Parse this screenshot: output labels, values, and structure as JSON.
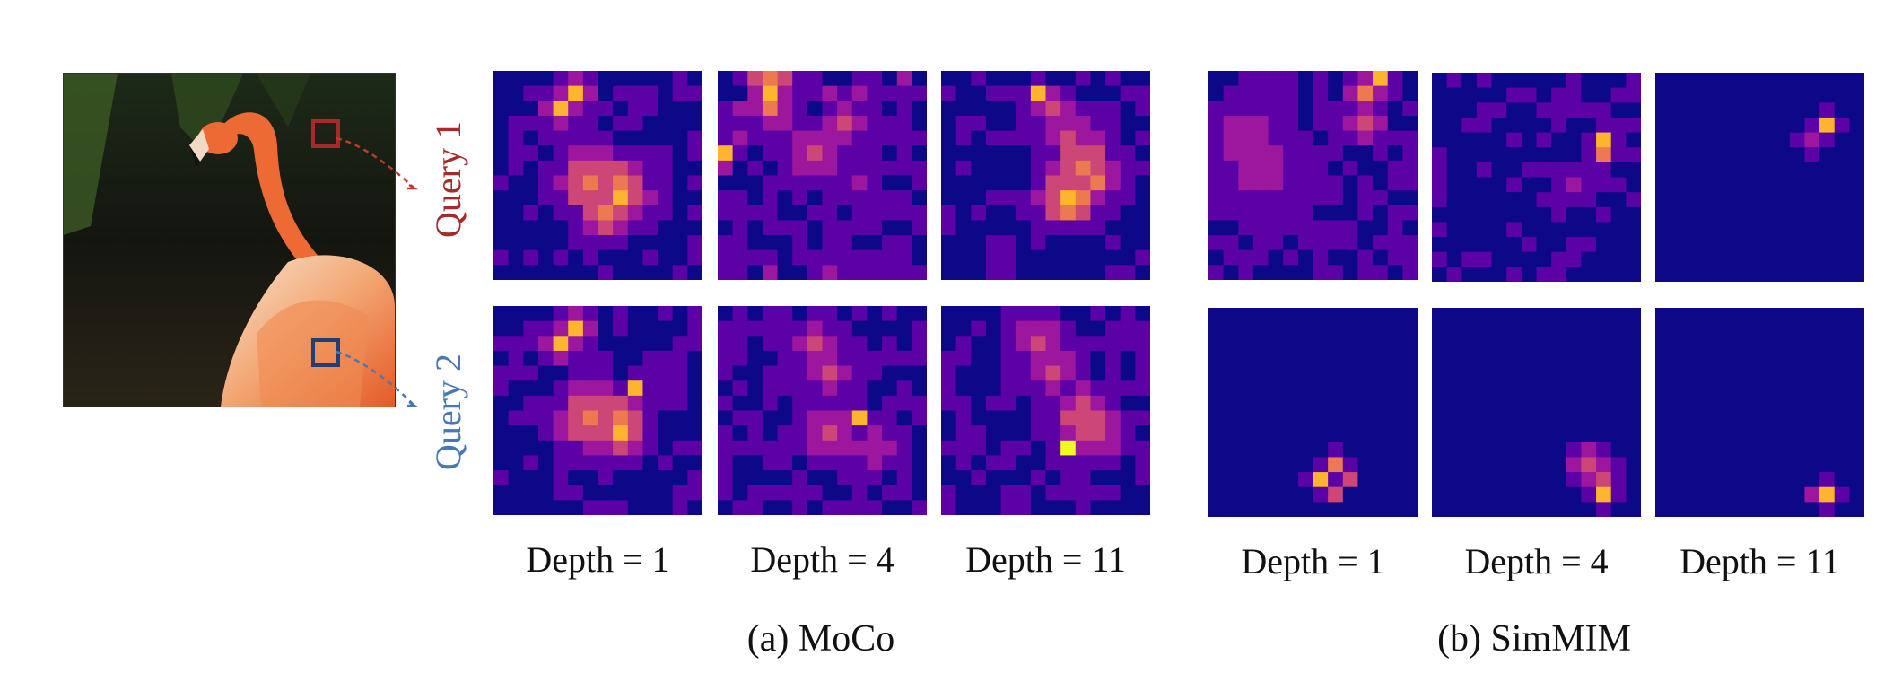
{
  "figure": {
    "queries": [
      {
        "label": "Query 1",
        "color": "#a52a2a"
      },
      {
        "label": "Query 2",
        "color": "#4a78b0"
      }
    ],
    "panels": [
      {
        "caption": "(a) MoCo",
        "depth_labels": [
          "Depth = 1",
          "Depth = 4",
          "Depth = 11"
        ]
      },
      {
        "caption": "(b) SimMIM",
        "depth_labels": [
          "Depth = 1",
          "Depth = 4",
          "Depth = 11"
        ]
      }
    ],
    "colormap": [
      "#0d0887",
      "#5c01a6",
      "#9c179e",
      "#cc4778",
      "#ed7953",
      "#fdb42f",
      "#f0f921"
    ]
  }
}
